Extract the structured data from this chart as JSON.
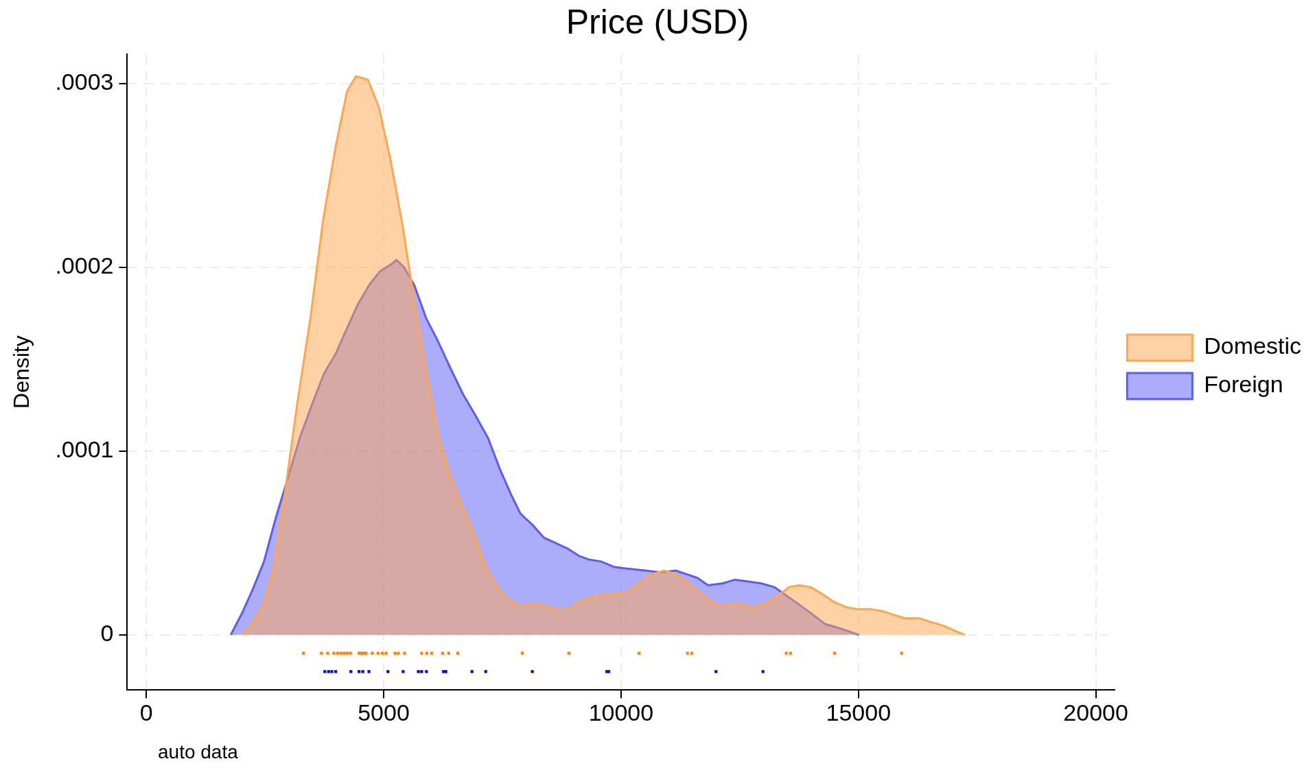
{
  "chart_data": {
    "type": "area",
    "title": "Price (USD)",
    "ylabel": "Density",
    "annotations": [
      "auto data"
    ],
    "xlim": [
      -400,
      20400
    ],
    "xticks": [
      0,
      5000,
      10000,
      15000,
      20000
    ],
    "ylim": [
      -3e-05,
      0.000316
    ],
    "yticks": [
      {
        "value": 0,
        "label": "0"
      },
      {
        "value": 0.0001,
        "label": ".0001"
      },
      {
        "value": 0.0002,
        "label": ".0002"
      },
      {
        "value": 0.0003,
        "label": ".0003"
      }
    ],
    "grid": true,
    "legend": "right",
    "line_style": "solid",
    "series": [
      {
        "name": "Domestic",
        "color": "#ffa64d",
        "x": [
          2020,
          2230,
          2480,
          2680,
          2910,
          3180,
          3460,
          3720,
          3990,
          4230,
          4420,
          4670,
          4900,
          5140,
          5390,
          5630,
          5900,
          6160,
          6410,
          6670,
          6920,
          7150,
          7390,
          7620,
          7880,
          8130,
          8390,
          8620,
          8900,
          9190,
          9430,
          9680,
          10130,
          10420,
          10660,
          10910,
          11150,
          11380,
          11800,
          12060,
          12440,
          12780,
          13040,
          13290,
          13540,
          13760,
          13990,
          14250,
          14480,
          14750,
          14970,
          15240,
          15500,
          15730,
          15990,
          16280,
          16520,
          16790,
          17050,
          17240
        ],
        "values": [
          0,
          6e-06,
          1.7e-05,
          3.6e-05,
          7.5e-05,
          0.000126,
          0.000173,
          0.000225,
          0.000266,
          0.000296,
          0.000304,
          0.000302,
          0.000287,
          0.000259,
          0.000224,
          0.000184,
          0.000143,
          0.000107,
          8.6e-05,
          6.9e-05,
          5.4e-05,
          3.7e-05,
          2.6e-05,
          1.9e-05,
          1.6e-05,
          1.7e-05,
          1.6e-05,
          1.4e-05,
          1.4e-05,
          1.9e-05,
          2.1e-05,
          2.2e-05,
          2.3e-05,
          2.9e-05,
          3.3e-05,
          3.5e-05,
          3.3e-05,
          2.9e-05,
          2e-05,
          1.6e-05,
          1.7e-05,
          1.5e-05,
          1.7e-05,
          2.1e-05,
          2.6e-05,
          2.7e-05,
          2.6e-05,
          2.2e-05,
          1.8e-05,
          1.5e-05,
          1.4e-05,
          1.4e-05,
          1.3e-05,
          1.1e-05,
          9e-06,
          9e-06,
          7e-06,
          5e-06,
          2e-06,
          0
        ]
      },
      {
        "name": "Foreign",
        "color": "#5a5cf5",
        "x": [
          1780,
          2020,
          2230,
          2480,
          2720,
          2990,
          3230,
          3500,
          3740,
          3990,
          4230,
          4460,
          4710,
          4930,
          5180,
          5270,
          5430,
          5650,
          5900,
          6140,
          6390,
          6670,
          6920,
          7200,
          7450,
          7690,
          7880,
          8130,
          8370,
          8620,
          8870,
          9110,
          9320,
          9570,
          9850,
          10130,
          10510,
          10850,
          11150,
          11380,
          11610,
          11830,
          12140,
          12400,
          12680,
          12950,
          13230,
          13500,
          13720,
          13990,
          14290,
          14670,
          15010
        ],
        "values": [
          0,
          1.2e-05,
          2.4e-05,
          4e-05,
          6.3e-05,
          8.6e-05,
          0.000107,
          0.000126,
          0.000142,
          0.000153,
          0.000167,
          0.00018,
          0.000191,
          0.000198,
          0.000202,
          0.000204,
          0.0002,
          0.00019,
          0.000172,
          0.00016,
          0.000146,
          0.000131,
          0.00012,
          0.000107,
          9e-05,
          7.6e-05,
          6.6e-05,
          6e-05,
          5.3e-05,
          5e-05,
          4.7e-05,
          4.3e-05,
          4.1e-05,
          4e-05,
          3.7e-05,
          3.6e-05,
          3.5e-05,
          3.4e-05,
          3.5e-05,
          3.3e-05,
          3.1e-05,
          2.7e-05,
          2.8e-05,
          3e-05,
          2.9e-05,
          2.8e-05,
          2.6e-05,
          2.1e-05,
          1.7e-05,
          1.2e-05,
          6e-06,
          3e-06,
          0
        ]
      },
      {
        "type": "scatter",
        "color": "#ff7f00",
        "x": [
          3310,
          3690,
          3820,
          3950,
          4030,
          4100,
          4170,
          4230,
          4300,
          4480,
          4530,
          4580,
          4630,
          4760,
          4880,
          4970,
          5050,
          5240,
          5310,
          5440,
          5800,
          5910,
          6010,
          6240,
          6370,
          6560,
          7920,
          8900,
          10380,
          11400,
          11490,
          13480,
          13570,
          14500,
          15910
        ],
        "values": [
          -1e-05,
          -1e-05,
          -1e-05,
          -1e-05,
          -1e-05,
          -1e-05,
          -1e-05,
          -1e-05,
          -1e-05,
          -1e-05,
          -1e-05,
          -1e-05,
          -1e-05,
          -1e-05,
          -1e-05,
          -1e-05,
          -1e-05,
          -1e-05,
          -1e-05,
          -1e-05,
          -1e-05,
          -1e-05,
          -1e-05,
          -1e-05,
          -1e-05,
          -1e-05,
          -1e-05,
          -1e-05,
          -1e-05,
          -1e-05,
          -1e-05,
          -1e-05,
          -1e-05,
          -1e-05,
          -1e-05
        ]
      },
      {
        "type": "scatter",
        "color": "#0000ff",
        "x": [
          3760,
          3840,
          3910,
          3990,
          4310,
          4480,
          4560,
          4690,
          5090,
          5410,
          5730,
          5800,
          5900,
          6260,
          6310,
          6860,
          7150,
          8130,
          9700,
          9740,
          12000,
          12990
        ],
        "values": [
          -2e-05,
          -2e-05,
          -2e-05,
          -2e-05,
          -2e-05,
          -2e-05,
          -2e-05,
          -2e-05,
          -2e-05,
          -2e-05,
          -2e-05,
          -2e-05,
          -2e-05,
          -2e-05,
          -2e-05,
          -2e-05,
          -2e-05,
          -2e-05,
          -2e-05,
          -2e-05,
          -2e-05,
          -2e-05
        ]
      }
    ]
  }
}
